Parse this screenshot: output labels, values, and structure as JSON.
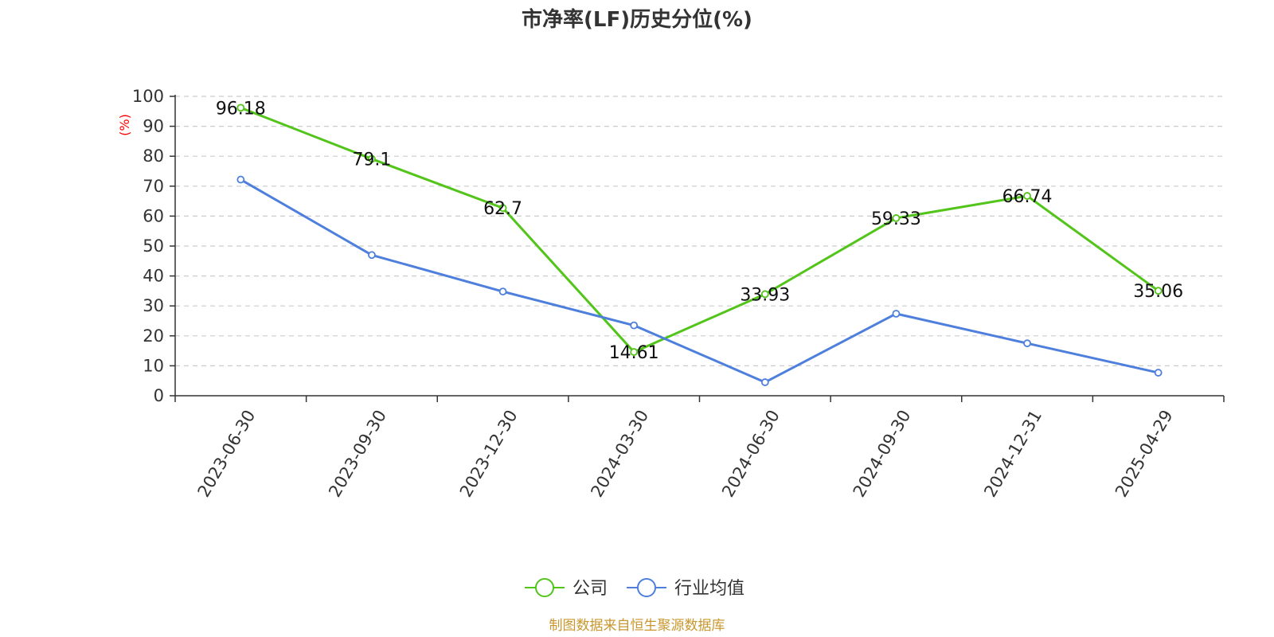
{
  "chart_data": {
    "type": "line",
    "title": "市净率(LF)历史分位(%)",
    "ylabel": "(%)",
    "xlabel": "",
    "categories": [
      "2023-06-30",
      "2023-09-30",
      "2023-12-30",
      "2024-03-30",
      "2024-06-30",
      "2024-09-30",
      "2024-12-31",
      "2025-04-29"
    ],
    "ylim": [
      0,
      100
    ],
    "yticks": [
      0,
      10,
      20,
      30,
      40,
      50,
      60,
      70,
      80,
      90,
      100
    ],
    "grid": true,
    "legend_position": "bottom-center",
    "series": [
      {
        "name": "公司",
        "color": "#52c41a",
        "values": [
          96.18,
          79.1,
          62.7,
          14.61,
          33.93,
          59.33,
          66.74,
          35.06
        ],
        "labels": [
          "96.18",
          "79.1",
          "62.7",
          "14.61",
          "33.93",
          "59.33",
          "66.74",
          "35.06"
        ]
      },
      {
        "name": "行业均值",
        "color": "#4e7fdc",
        "values": [
          72.2,
          47.0,
          34.8,
          23.5,
          4.5,
          27.4,
          17.5,
          7.7
        ]
      }
    ]
  },
  "source": "制图数据来自恒生聚源数据库"
}
